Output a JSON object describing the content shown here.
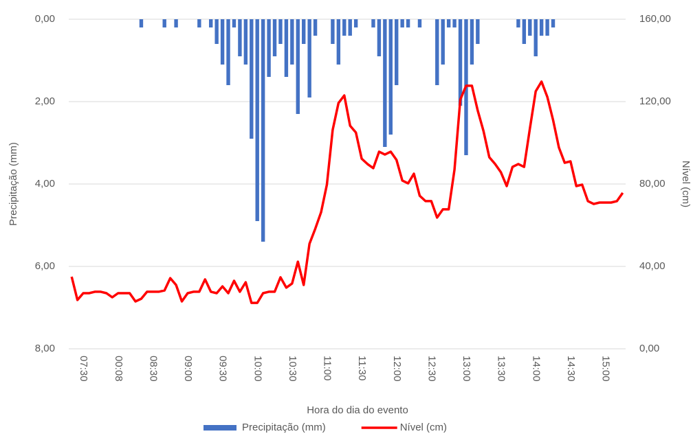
{
  "chart_data": {
    "type": "bar",
    "categories": [
      null,
      null,
      "07:30",
      null,
      null,
      null,
      null,
      null,
      "00:08",
      null,
      null,
      null,
      null,
      null,
      "08:30",
      null,
      null,
      null,
      null,
      null,
      "09:00",
      null,
      null,
      null,
      null,
      null,
      "09:30",
      null,
      null,
      null,
      null,
      null,
      "10:00",
      null,
      null,
      null,
      null,
      null,
      "10:30",
      null,
      null,
      null,
      null,
      null,
      "11:00",
      null,
      null,
      null,
      null,
      null,
      "11:30",
      null,
      null,
      null,
      null,
      null,
      "12:00",
      null,
      null,
      null,
      null,
      null,
      "12:30",
      null,
      null,
      null,
      null,
      null,
      "13:00",
      null,
      null,
      null,
      null,
      null,
      "13:30",
      null,
      null,
      null,
      null,
      null,
      "14:00",
      null,
      null,
      null,
      null,
      null,
      "14:30",
      null,
      null,
      null,
      null,
      null,
      "15:00",
      null,
      null,
      null
    ],
    "series": [
      {
        "name": "Precipitação (mm)",
        "type": "bar",
        "color": "#4472c4",
        "values": [
          0,
          0,
          0,
          0,
          0,
          0,
          0,
          0,
          0,
          0,
          0,
          0,
          0.2,
          0,
          0,
          0,
          0.2,
          0,
          0.2,
          0,
          0,
          0,
          0.2,
          0,
          0.2,
          0.6,
          1.1,
          1.6,
          0.2,
          0.9,
          1.1,
          2.9,
          4.9,
          5.4,
          1.4,
          0.9,
          0.6,
          1.4,
          1.1,
          2.3,
          0.6,
          1.9,
          0.4,
          0,
          0,
          0.6,
          1.1,
          0.4,
          0.4,
          0.2,
          0,
          0,
          0.2,
          0.9,
          3.1,
          2.8,
          1.6,
          0.2,
          0.2,
          0,
          0.2,
          0,
          0,
          1.6,
          1.1,
          0.2,
          0.2,
          2.1,
          3.3,
          1.1,
          0.6,
          0,
          0,
          0,
          0,
          0,
          0,
          0.2,
          0.6,
          0.4,
          0.9,
          0.4,
          0.4,
          0.2,
          0,
          0,
          0,
          0,
          0,
          0,
          0,
          0,
          0,
          0,
          0,
          0
        ]
      },
      {
        "name": "Nível (cm)",
        "type": "line",
        "color": "#ff0000",
        "axis": "y2",
        "values": [
          35,
          23.7,
          27,
          27,
          27.7,
          27.7,
          27,
          25,
          27,
          27,
          27,
          23,
          24.3,
          27.7,
          27.7,
          27.7,
          28.3,
          34.3,
          31,
          23,
          27,
          27.7,
          27.7,
          33.7,
          27.7,
          27,
          30.3,
          27,
          33,
          27.7,
          32.3,
          22.3,
          22.3,
          27,
          27.7,
          27.7,
          34.7,
          29.7,
          31.7,
          42.3,
          31,
          51,
          58.3,
          66.3,
          79.7,
          106.3,
          119.3,
          123,
          108.3,
          105,
          92.3,
          89.7,
          87.7,
          95.7,
          94.3,
          95.7,
          91.7,
          81.7,
          80.3,
          85,
          74.3,
          71.7,
          71.7,
          63.7,
          67.7,
          67.7,
          87,
          121,
          127.7,
          127.7,
          115.7,
          105.7,
          93,
          89.7,
          85.7,
          79,
          88.3,
          89.7,
          88.3,
          107,
          125,
          129.7,
          122.3,
          111,
          97.7,
          90.3,
          91,
          79,
          79.7,
          71.7,
          70.3,
          71,
          71,
          71,
          71.7,
          75.7
        ]
      }
    ],
    "xlabel": "Hora do dia do evento",
    "ylabel": "Precipitação (mm)",
    "y2label": "Nível (cm)",
    "ylim": [
      0,
      8
    ],
    "y_inverted": true,
    "yticks": [
      {
        "value": 0,
        "label": "0,00"
      },
      {
        "value": 2,
        "label": "2,00"
      },
      {
        "value": 4,
        "label": "4,00"
      },
      {
        "value": 6,
        "label": "6,00"
      },
      {
        "value": 8,
        "label": "8,00"
      }
    ],
    "y2lim": [
      0,
      160
    ],
    "y2ticks": [
      {
        "value": 0,
        "label": "0,00"
      },
      {
        "value": 40,
        "label": "40,00"
      },
      {
        "value": 80,
        "label": "80,00"
      },
      {
        "value": 120,
        "label": "120,00"
      },
      {
        "value": 160,
        "label": "160,00"
      }
    ],
    "grid": true,
    "legend": "bottom"
  }
}
